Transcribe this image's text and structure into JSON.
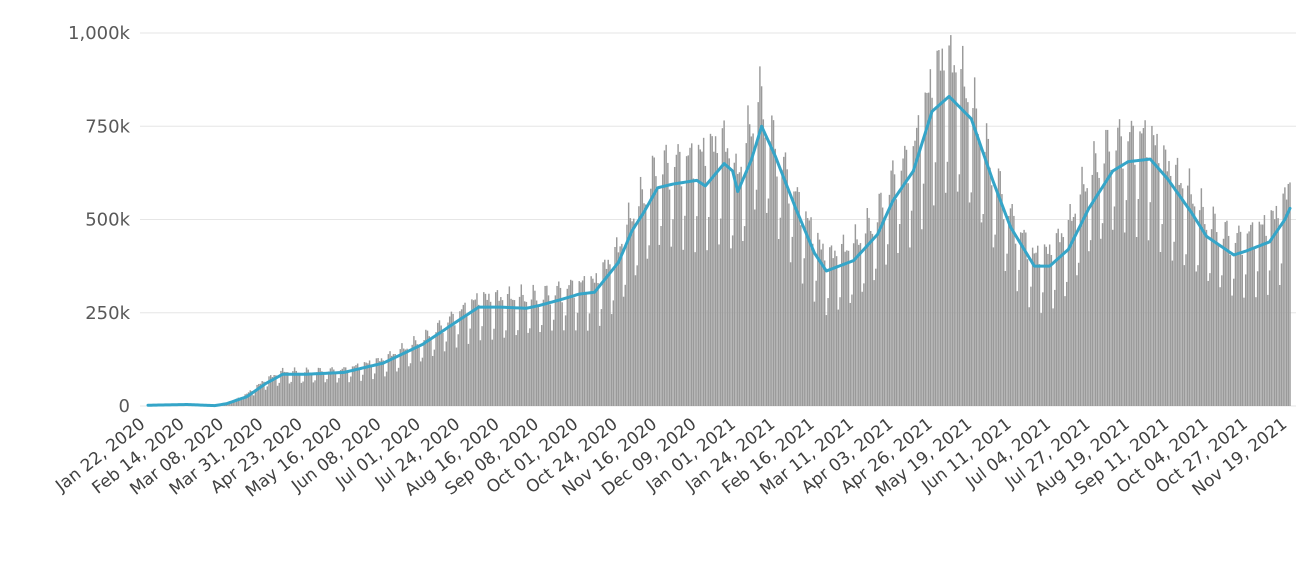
{
  "chart_data": {
    "type": "bar",
    "title": "",
    "xlabel": "",
    "ylabel": "",
    "ylim": [
      0,
      1000000
    ],
    "y_ticks": [
      0,
      250000,
      500000,
      750000,
      1000000
    ],
    "y_tick_labels": [
      "0",
      "250k",
      "500k",
      "750k",
      "1,000k"
    ],
    "x_start_date": "2020-01-22",
    "x_end_date": "2021-11-22",
    "x_tick_labels": [
      "Jan 22, 2020",
      "Feb 14, 2020",
      "Mar 08, 2020",
      "Mar 31, 2020",
      "Apr 23, 2020",
      "May 16, 2020",
      "Jun 08, 2020",
      "Jul 01, 2020",
      "Jul 24, 2020",
      "Aug 16, 2020",
      "Sep 08, 2020",
      "Oct 01, 2020",
      "Oct 24, 2020",
      "Nov 16, 2020",
      "Dec 09, 2020",
      "Jan 01, 2021",
      "Jan 24, 2021",
      "Feb 16, 2021",
      "Mar 11, 2021",
      "Apr 03, 2021",
      "Apr 26, 2021",
      "May 19, 2021",
      "Jun 11, 2021",
      "Jul 04, 2021",
      "Jul 27, 2021",
      "Aug 19, 2021",
      "Sep 11, 2021",
      "Oct 04, 2021",
      "Oct 27, 2021",
      "Nov 19, 2021"
    ],
    "grid": true,
    "legend": "none",
    "colors": {
      "bars": "#9a9a9a",
      "average_line": "#35a5c8",
      "grid": "#e6e6e6"
    },
    "series": [
      {
        "type": "bar",
        "frequency": "daily",
        "date_points": [
          [
            "2020-01-22",
            1000
          ],
          [
            "2020-02-14",
            3000
          ],
          [
            "2020-03-01",
            2000
          ],
          [
            "2020-03-08",
            5000
          ],
          [
            "2020-03-20",
            30000
          ],
          [
            "2020-03-31",
            65000
          ],
          [
            "2020-04-10",
            85000
          ],
          [
            "2020-04-23",
            85000
          ],
          [
            "2020-05-16",
            90000
          ],
          [
            "2020-06-08",
            115000
          ],
          [
            "2020-07-01",
            165000
          ],
          [
            "2020-07-24",
            235000
          ],
          [
            "2020-08-03",
            265000
          ],
          [
            "2020-08-16",
            265000
          ],
          [
            "2020-09-08",
            270000
          ],
          [
            "2020-10-01",
            300000
          ],
          [
            "2020-10-10",
            305000
          ],
          [
            "2020-10-24",
            385000
          ],
          [
            "2020-11-01",
            470000
          ],
          [
            "2020-11-08",
            520000
          ],
          [
            "2020-11-16",
            590000
          ],
          [
            "2020-12-09",
            615000
          ],
          [
            "2020-12-25",
            650000
          ],
          [
            "2020-12-30",
            600000
          ],
          [
            "2021-01-01",
            560000
          ],
          [
            "2021-01-12",
            720000
          ],
          [
            "2021-01-14",
            770000
          ],
          [
            "2021-01-24",
            640000
          ],
          [
            "2021-02-05",
            520000
          ],
          [
            "2021-02-16",
            420000
          ],
          [
            "2021-02-23",
            365000
          ],
          [
            "2021-03-11",
            395000
          ],
          [
            "2021-03-25",
            470000
          ],
          [
            "2021-04-03",
            560000
          ],
          [
            "2021-04-15",
            630000
          ],
          [
            "2021-04-26",
            800000
          ],
          [
            "2021-05-02",
            850000
          ],
          [
            "2021-05-10",
            835000
          ],
          [
            "2021-05-19",
            750000
          ],
          [
            "2021-06-01",
            580000
          ],
          [
            "2021-06-11",
            470000
          ],
          [
            "2021-06-25",
            370000
          ],
          [
            "2021-07-04",
            380000
          ],
          [
            "2021-07-15",
            440000
          ],
          [
            "2021-07-27",
            570000
          ],
          [
            "2021-08-10",
            650000
          ],
          [
            "2021-08-19",
            660000
          ],
          [
            "2021-09-01",
            665000
          ],
          [
            "2021-09-11",
            590000
          ],
          [
            "2021-09-25",
            520000
          ],
          [
            "2021-10-04",
            460000
          ],
          [
            "2021-10-20",
            410000
          ],
          [
            "2021-10-27",
            420000
          ],
          [
            "2021-11-10",
            450000
          ],
          [
            "2021-11-19",
            500000
          ],
          [
            "2021-11-22",
            560000
          ]
        ]
      },
      {
        "type": "line",
        "frequency": "daily",
        "date_points": [
          [
            "2020-01-22",
            2000
          ],
          [
            "2020-02-14",
            4000
          ],
          [
            "2020-03-01",
            1000
          ],
          [
            "2020-03-08",
            6000
          ],
          [
            "2020-03-20",
            25000
          ],
          [
            "2020-03-31",
            60000
          ],
          [
            "2020-04-10",
            85000
          ],
          [
            "2020-04-23",
            85000
          ],
          [
            "2020-05-16",
            90000
          ],
          [
            "2020-06-08",
            115000
          ],
          [
            "2020-07-01",
            165000
          ],
          [
            "2020-07-24",
            235000
          ],
          [
            "2020-08-03",
            265000
          ],
          [
            "2020-08-16",
            265000
          ],
          [
            "2020-08-31",
            262000
          ],
          [
            "2020-09-08",
            270000
          ],
          [
            "2020-09-20",
            285000
          ],
          [
            "2020-10-01",
            300000
          ],
          [
            "2020-10-10",
            305000
          ],
          [
            "2020-10-24",
            385000
          ],
          [
            "2020-11-01",
            470000
          ],
          [
            "2020-11-08",
            520000
          ],
          [
            "2020-11-16",
            585000
          ],
          [
            "2020-11-25",
            595000
          ],
          [
            "2020-12-09",
            605000
          ],
          [
            "2020-12-14",
            590000
          ],
          [
            "2020-12-25",
            650000
          ],
          [
            "2020-12-30",
            630000
          ],
          [
            "2021-01-02",
            575000
          ],
          [
            "2021-01-10",
            660000
          ],
          [
            "2021-01-16",
            750000
          ],
          [
            "2021-01-24",
            670000
          ],
          [
            "2021-02-05",
            530000
          ],
          [
            "2021-02-16",
            410000
          ],
          [
            "2021-02-23",
            362000
          ],
          [
            "2021-03-11",
            390000
          ],
          [
            "2021-03-25",
            460000
          ],
          [
            "2021-04-03",
            550000
          ],
          [
            "2021-04-15",
            630000
          ],
          [
            "2021-04-26",
            790000
          ],
          [
            "2021-05-06",
            830000
          ],
          [
            "2021-05-19",
            770000
          ],
          [
            "2021-06-01",
            600000
          ],
          [
            "2021-06-11",
            480000
          ],
          [
            "2021-06-25",
            375000
          ],
          [
            "2021-07-04",
            375000
          ],
          [
            "2021-07-15",
            420000
          ],
          [
            "2021-07-27",
            530000
          ],
          [
            "2021-08-10",
            630000
          ],
          [
            "2021-08-19",
            655000
          ],
          [
            "2021-09-01",
            662000
          ],
          [
            "2021-09-11",
            610000
          ],
          [
            "2021-09-25",
            520000
          ],
          [
            "2021-10-04",
            455000
          ],
          [
            "2021-10-20",
            405000
          ],
          [
            "2021-10-27",
            415000
          ],
          [
            "2021-11-10",
            440000
          ],
          [
            "2021-11-19",
            500000
          ],
          [
            "2021-11-22",
            530000
          ]
        ]
      }
    ]
  }
}
